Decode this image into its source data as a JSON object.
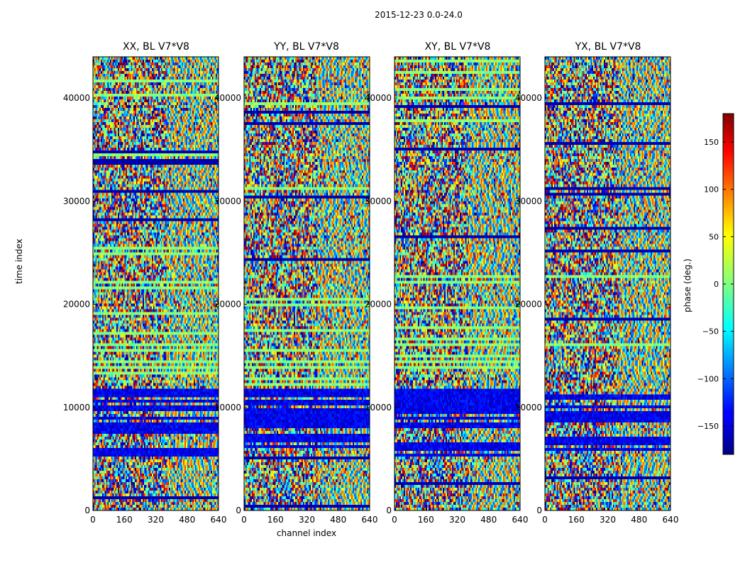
{
  "chart_data": {
    "type": "heatmap",
    "suptitle": "2015-12-23 0.0-24.0",
    "panels": [
      {
        "title": "XX, BL V7*V8"
      },
      {
        "title": "YY, BL V7*V8"
      },
      {
        "title": "XY, BL V7*V8"
      },
      {
        "title": "YX, BL V7*V8"
      }
    ],
    "xlabel": "channel index",
    "ylabel": "time index",
    "xlim": [
      0,
      640
    ],
    "ylim": [
      0,
      44000
    ],
    "xticks": [
      0,
      160,
      320,
      480,
      640
    ],
    "yticks": [
      0,
      10000,
      20000,
      30000,
      40000
    ],
    "colorbar": {
      "label": "phase (deg.)",
      "range": [
        -180,
        180
      ],
      "ticks": [
        -150,
        -100,
        -50,
        0,
        50,
        100,
        150
      ],
      "tick_labels": [
        "−150",
        "−100",
        "−50",
        "0",
        "50",
        "100",
        "150"
      ],
      "colormap": "jet"
    }
  }
}
